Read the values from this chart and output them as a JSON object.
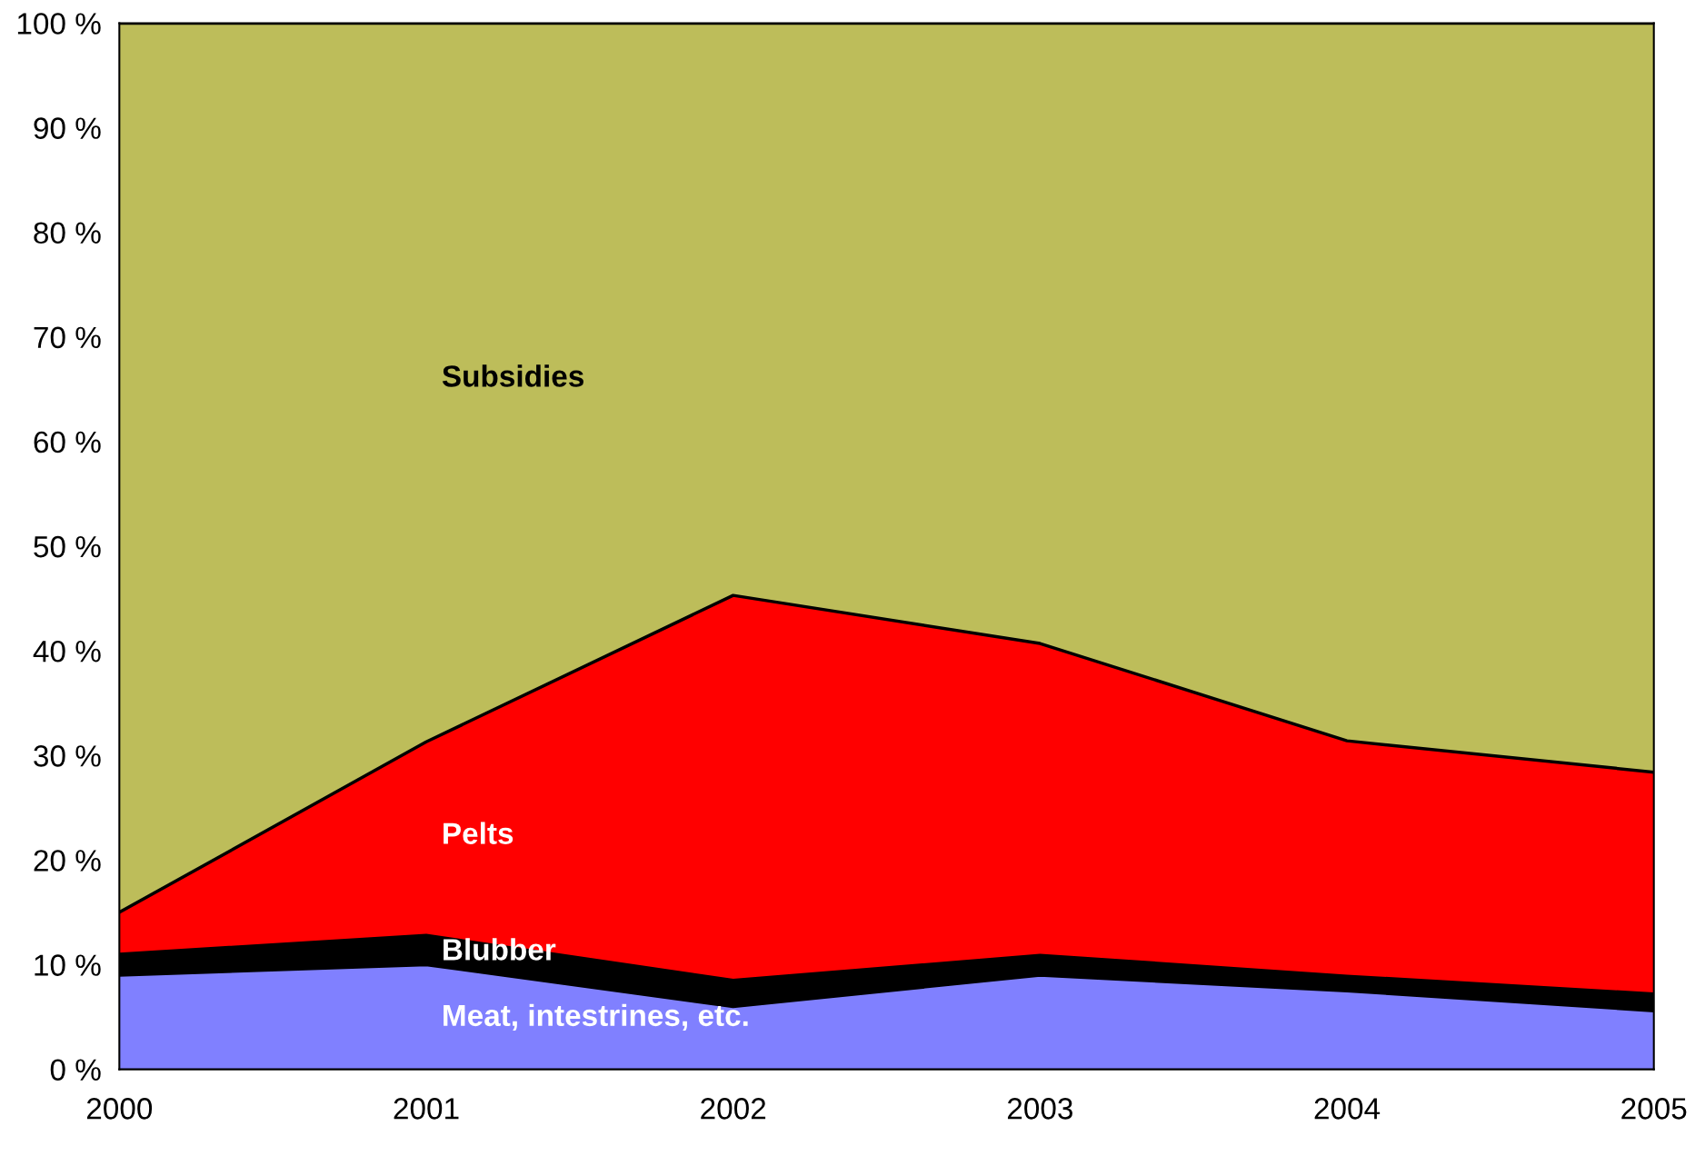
{
  "chart_data": {
    "type": "area",
    "stacked": true,
    "x": [
      2000,
      2001,
      2002,
      2003,
      2004,
      2005
    ],
    "xlim": [
      2000,
      2005
    ],
    "xticks": [
      2000,
      2001,
      2002,
      2003,
      2004,
      2005
    ],
    "ylim": [
      0,
      100
    ],
    "yticks": [
      {
        "value": 0,
        "label": "0 %"
      },
      {
        "value": 10,
        "label": "10 %"
      },
      {
        "value": 20,
        "label": "20 %"
      },
      {
        "value": 30,
        "label": "30 %"
      },
      {
        "value": 40,
        "label": "40 %"
      },
      {
        "value": 50,
        "label": "50 %"
      },
      {
        "value": 60,
        "label": "60 %"
      },
      {
        "value": 70,
        "label": "70 %"
      },
      {
        "value": 80,
        "label": "80 %"
      },
      {
        "value": 90,
        "label": "90 %"
      },
      {
        "value": 100,
        "label": "100 %"
      }
    ],
    "grid": false,
    "legend": false,
    "series": [
      {
        "name": "Meat, intestrines, etc.",
        "color": "#8080ff",
        "values": [
          9,
          10,
          6,
          9,
          7.5,
          5.6
        ]
      },
      {
        "name": "Blubber",
        "color": "#000000",
        "values": [
          2,
          2.8,
          2.5,
          1.9,
          1.4,
          1.6
        ]
      },
      {
        "name": "Pelts",
        "color": "#ff0000",
        "values": [
          4,
          18.5,
          36.8,
          29.8,
          22.5,
          21.2
        ]
      },
      {
        "name": "Subsidies",
        "color": "#bdbd5a",
        "values": [
          85,
          68.7,
          54.7,
          59.3,
          68.6,
          71.6
        ]
      }
    ]
  }
}
